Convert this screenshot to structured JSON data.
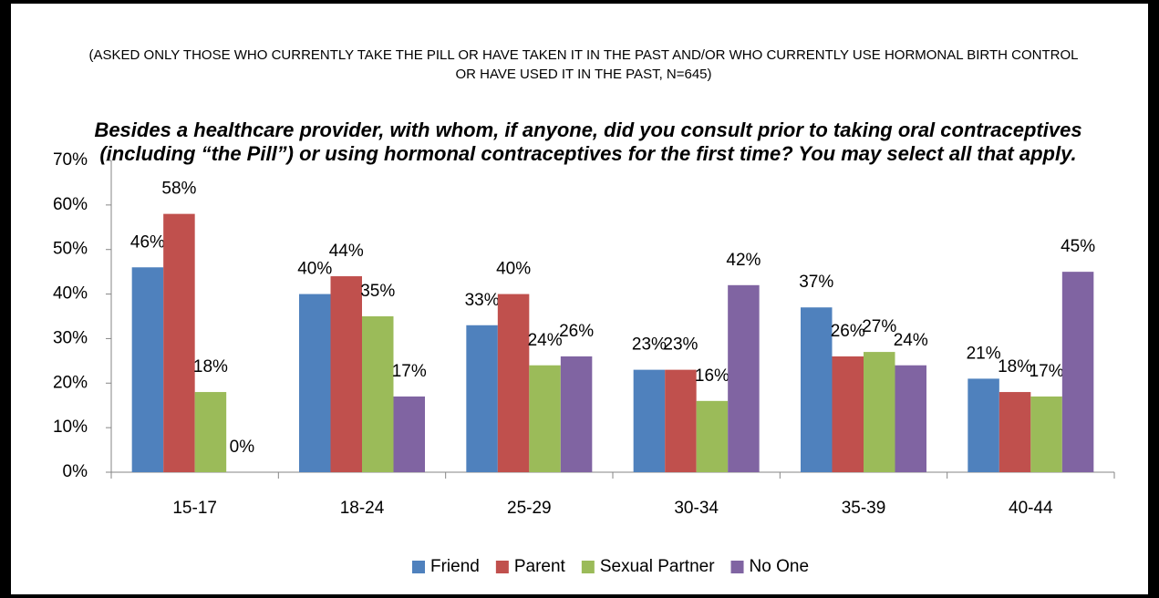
{
  "chart_data": {
    "type": "bar",
    "subtitle": "(ASKED ONLY THOSE WHO CURRENTLY TAKE THE PILL OR HAVE TAKEN IT IN THE PAST AND/OR WHO CURRENTLY USE HORMONAL BIRTH CONTROL OR HAVE USED IT IN THE PAST, N=645)",
    "title": "Besides a healthcare provider, with whom, if anyone, did you consult prior to taking oral contraceptives (including “the Pill”) or using hormonal contraceptives for the first time?  You may select all that apply.",
    "categories": [
      "15-17",
      "18-24",
      "25-29",
      "30-34",
      "35-39",
      "40-44"
    ],
    "series": [
      {
        "name": "Friend",
        "color": "#4f81bd",
        "values": [
          46,
          40,
          33,
          23,
          37,
          21
        ],
        "value_labels": [
          "46%",
          "40%",
          "33%",
          "23%",
          "37%",
          "21%"
        ]
      },
      {
        "name": "Parent",
        "color": "#c0504d",
        "values": [
          58,
          44,
          40,
          23,
          26,
          18
        ],
        "value_labels": [
          "58%",
          "44%",
          "40%",
          "23%",
          "26%",
          "18%"
        ]
      },
      {
        "name": "Sexual Partner",
        "color": "#9bbb59",
        "values": [
          18,
          35,
          24,
          16,
          27,
          17
        ],
        "value_labels": [
          "18%",
          "35%",
          "24%",
          "16%",
          "27%",
          "17%"
        ]
      },
      {
        "name": "No One",
        "color": "#8064a2",
        "values": [
          0,
          17,
          26,
          42,
          24,
          45
        ],
        "value_labels": [
          "0%",
          "17%",
          "26%",
          "42%",
          "24%",
          "45%"
        ]
      }
    ],
    "ylim": [
      0,
      70
    ],
    "yticks": [
      {
        "value": 0,
        "label": "0%"
      },
      {
        "value": 10,
        "label": "10%"
      },
      {
        "value": 20,
        "label": "20%"
      },
      {
        "value": 30,
        "label": "30%"
      },
      {
        "value": 40,
        "label": "40%"
      },
      {
        "value": 50,
        "label": "50%"
      },
      {
        "value": 60,
        "label": "60%"
      },
      {
        "value": 70,
        "label": "70%"
      }
    ],
    "grid": false,
    "legend": "bottom"
  }
}
